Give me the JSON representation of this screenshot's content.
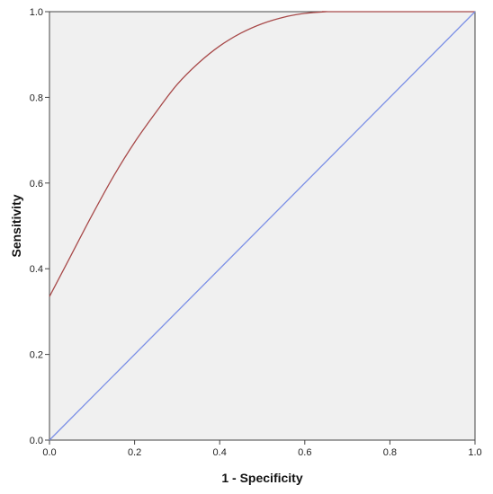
{
  "chart_data": {
    "type": "line",
    "title": "",
    "xlabel": "1 - Specificity",
    "ylabel": "Sensitivity",
    "xlim": [
      0,
      1
    ],
    "ylim": [
      0,
      1
    ],
    "x_ticks": [
      "0.0",
      "0.2",
      "0.4",
      "0.6",
      "0.8",
      "1.0"
    ],
    "y_ticks": [
      "0.0",
      "0.2",
      "0.4",
      "0.6",
      "0.8",
      "1.0"
    ],
    "grid": false,
    "legend": "none",
    "background_color": "#f0f0f0",
    "series": [
      {
        "color": "#a84a4a",
        "x": [
          0.0,
          0.05,
          0.1,
          0.15,
          0.2,
          0.25,
          0.3,
          0.35,
          0.4,
          0.45,
          0.5,
          0.55,
          0.6,
          0.65,
          0.67,
          1.0
        ],
        "y": [
          0.335,
          0.43,
          0.525,
          0.615,
          0.695,
          0.765,
          0.83,
          0.88,
          0.92,
          0.95,
          0.972,
          0.987,
          0.996,
          1.0,
          1.0,
          1.0
        ]
      },
      {
        "color": "#7b8fe6",
        "x": [
          0.0,
          1.0
        ],
        "y": [
          0.0,
          1.0
        ]
      }
    ]
  }
}
